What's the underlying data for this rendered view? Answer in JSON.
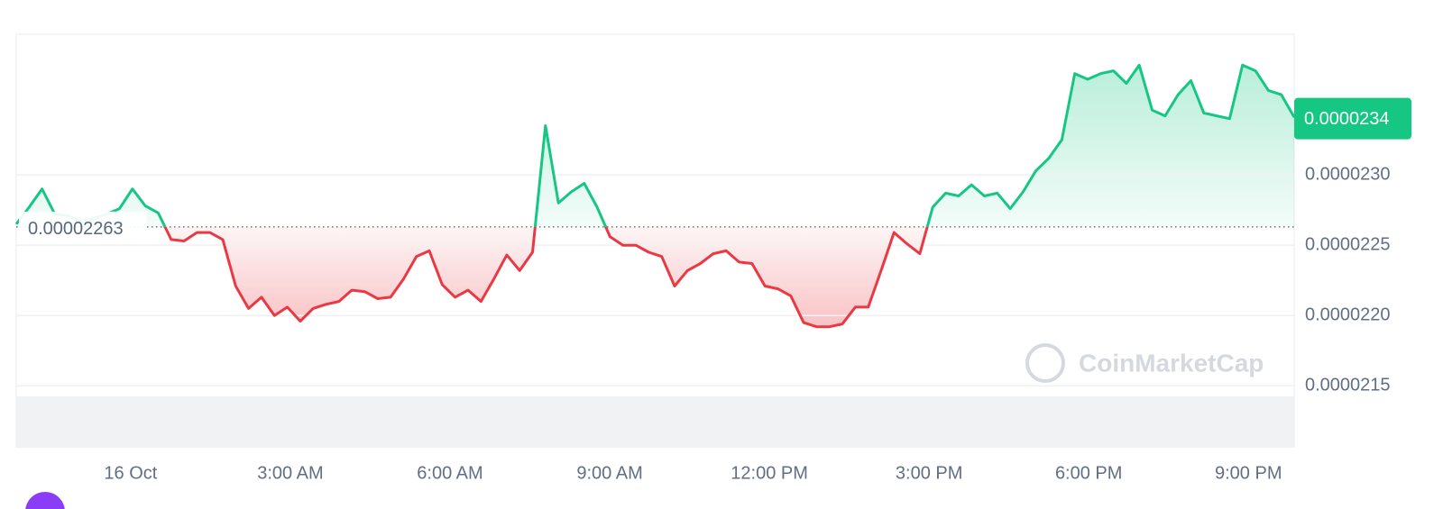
{
  "chart_data": {
    "type": "line",
    "values": [
      2.265e-05,
      2.277e-05,
      2.29e-05,
      2.272e-05,
      2.271e-05,
      2.267e-05,
      2.269e-05,
      2.272e-05,
      2.276e-05,
      2.29e-05,
      2.278e-05,
      2.273e-05,
      2.254e-05,
      2.253e-05,
      2.259e-05,
      2.259e-05,
      2.254e-05,
      2.221e-05,
      2.205e-05,
      2.213e-05,
      2.2e-05,
      2.206e-05,
      2.196e-05,
      2.205e-05,
      2.208e-05,
      2.21e-05,
      2.218e-05,
      2.217e-05,
      2.212e-05,
      2.213e-05,
      2.226e-05,
      2.242e-05,
      2.246e-05,
      2.222e-05,
      2.213e-05,
      2.218e-05,
      2.21e-05,
      2.226e-05,
      2.243e-05,
      2.232e-05,
      2.245e-05,
      2.335e-05,
      2.28e-05,
      2.288e-05,
      2.294e-05,
      2.277e-05,
      2.256e-05,
      2.25e-05,
      2.25e-05,
      2.245e-05,
      2.242e-05,
      2.221e-05,
      2.232e-05,
      2.237e-05,
      2.244e-05,
      2.246e-05,
      2.238e-05,
      2.237e-05,
      2.221e-05,
      2.219e-05,
      2.214e-05,
      2.195e-05,
      2.192e-05,
      2.192e-05,
      2.194e-05,
      2.206e-05,
      2.206e-05,
      2.232e-05,
      2.259e-05,
      2.251e-05,
      2.244e-05,
      2.277e-05,
      2.287e-05,
      2.285e-05,
      2.293e-05,
      2.285e-05,
      2.287e-05,
      2.276e-05,
      2.288e-05,
      2.303e-05,
      2.312e-05,
      2.325e-05,
      2.372e-05,
      2.368e-05,
      2.372e-05,
      2.374e-05,
      2.365e-05,
      2.378e-05,
      2.346e-05,
      2.342e-05,
      2.357e-05,
      2.367e-05,
      2.344e-05,
      2.342e-05,
      2.34e-05,
      2.378e-05,
      2.374e-05,
      2.36e-05,
      2.357e-05,
      2.341e-05
    ],
    "color_up": "#16c784",
    "color_down": "#ea3943",
    "baseline": {
      "value": 2.263e-05,
      "label": "0.00002263"
    },
    "last_price": {
      "value": 2.34e-05,
      "label": "0.0000234"
    },
    "ylim": [
      2.106e-05,
      2.4e-05
    ],
    "yticks": [
      {
        "value": 2.3e-05,
        "label": "0.0000230"
      },
      {
        "value": 2.25e-05,
        "label": "0.0000225"
      },
      {
        "value": 2.2e-05,
        "label": "0.0000220"
      },
      {
        "value": 2.15e-05,
        "label": "0.0000215"
      }
    ],
    "xlim": [
      -2.15,
      21.86
    ],
    "xticks": [
      {
        "value": 0,
        "label": "16 Oct"
      },
      {
        "value": 3,
        "label": "3:00 AM"
      },
      {
        "value": 6,
        "label": "6:00 AM"
      },
      {
        "value": 9,
        "label": "9:00 AM"
      },
      {
        "value": 12,
        "label": "12:00 PM"
      },
      {
        "value": 15,
        "label": "3:00 PM"
      },
      {
        "value": 18,
        "label": "6:00 PM"
      },
      {
        "value": 21,
        "label": "9:00 PM"
      }
    ],
    "grid": true,
    "watermark": "CoinMarketCap"
  }
}
